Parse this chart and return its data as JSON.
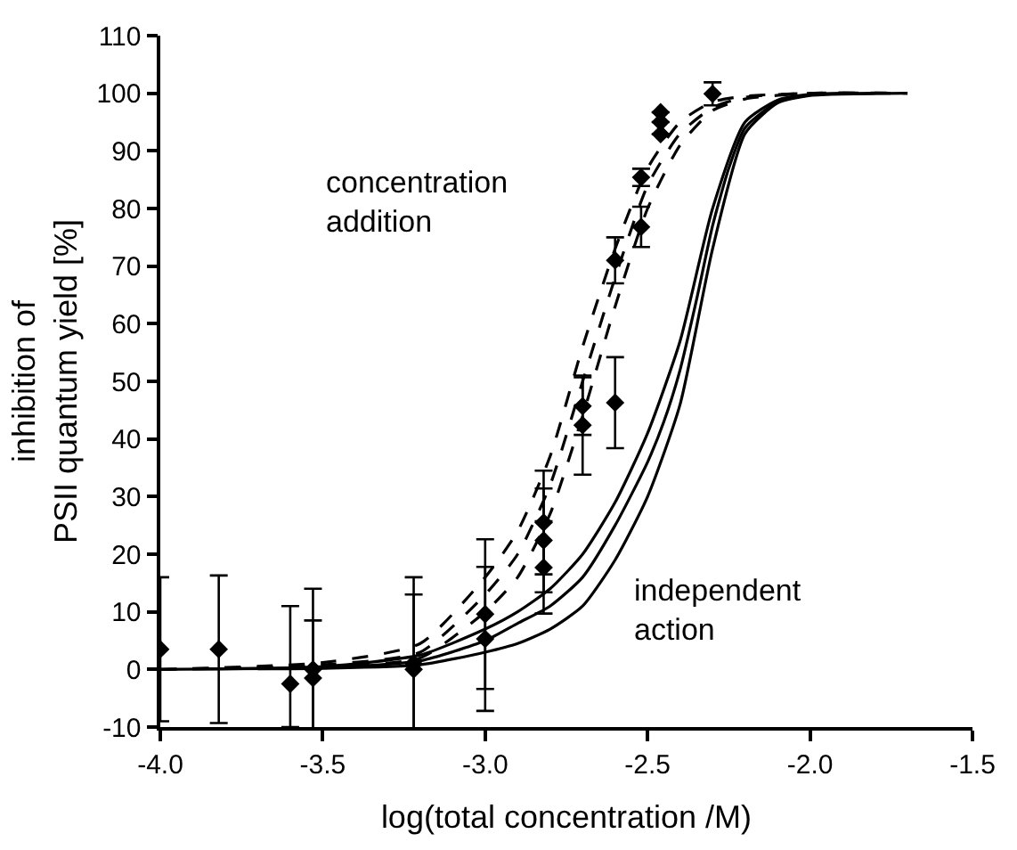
{
  "chart_data": {
    "type": "line",
    "xlabel": "log(total concentration /M)",
    "ylabel": "inhibition of\nPSII quantum yield [%]",
    "xlim": [
      -4.0,
      -1.5
    ],
    "xticks": [
      {
        "value": -4.0,
        "label": "-4.0"
      },
      {
        "value": -3.5,
        "label": "-3.5"
      },
      {
        "value": -3.0,
        "label": "-3.0"
      },
      {
        "value": -2.5,
        "label": "-2.5"
      },
      {
        "value": -2.0,
        "label": "-2.0"
      },
      {
        "value": -1.5,
        "label": "-1.5"
      }
    ],
    "ylim": [
      -10,
      110
    ],
    "yticks": [
      -10,
      0,
      10,
      20,
      30,
      40,
      50,
      60,
      70,
      80,
      90,
      100,
      110
    ],
    "annotations": [
      "concentration\naddition",
      "independent\naction"
    ],
    "series": [
      {
        "line_style": "dashed",
        "marker": "none",
        "color": "#000000",
        "x": [
          -4.0,
          -3.5,
          -3.2,
          -3.0,
          -2.9,
          -2.8,
          -2.7,
          -2.6,
          -2.5,
          -2.4,
          -2.3,
          -2.2,
          -2.0,
          -1.7
        ],
        "values": [
          0,
          0.8,
          3,
          13,
          20,
          32,
          50,
          68,
          84,
          93,
          97.5,
          99.3,
          100,
          100
        ]
      },
      {
        "line_style": "dashed",
        "marker": "none",
        "color": "#000000",
        "x": [
          -4.0,
          -3.5,
          -3.2,
          -3.0,
          -2.9,
          -2.8,
          -2.7,
          -2.6,
          -2.5,
          -2.4,
          -2.3,
          -2.2,
          -2.0
        ],
        "values": [
          0,
          1.2,
          4.5,
          16,
          24,
          37,
          56,
          73,
          87,
          95,
          98.5,
          99.5,
          100
        ]
      },
      {
        "line_style": "dashed",
        "marker": "none",
        "color": "#000000",
        "x": [
          -3.8,
          -3.5,
          -3.2,
          -3.0,
          -2.9,
          -2.8,
          -2.7,
          -2.6,
          -2.5,
          -2.4,
          -2.3,
          -2.2,
          -2.0,
          -1.7
        ],
        "values": [
          0.2,
          0.5,
          2,
          10,
          16,
          27,
          44,
          63,
          80,
          91,
          97,
          99,
          100,
          100
        ]
      },
      {
        "line_style": "solid",
        "marker": "none",
        "color": "#000000",
        "x": [
          -3.9,
          -3.5,
          -3.2,
          -3.0,
          -2.9,
          -2.8,
          -2.7,
          -2.6,
          -2.5,
          -2.45,
          -2.4,
          -2.35,
          -2.3,
          -2.25,
          -2.2,
          -2.1,
          -2.0,
          -1.8
        ],
        "values": [
          0.1,
          0.3,
          1.5,
          5,
          8,
          11,
          16,
          25,
          36,
          43,
          52,
          64,
          77,
          87,
          94,
          98.5,
          99.7,
          100
        ]
      },
      {
        "line_style": "solid",
        "marker": "none",
        "color": "#000000",
        "x": [
          -4.0,
          -3.5,
          -3.2,
          -3.0,
          -2.9,
          -2.8,
          -2.7,
          -2.6,
          -2.5,
          -2.4,
          -2.3,
          -2.2,
          -2.1,
          -2.0,
          -1.9
        ],
        "values": [
          0,
          0.5,
          2.5,
          7,
          10,
          14,
          20,
          29,
          41,
          57,
          80,
          95,
          98.8,
          99.8,
          100
        ]
      },
      {
        "line_style": "solid",
        "marker": "none",
        "color": "#000000",
        "x": [
          -3.7,
          -3.5,
          -3.2,
          -3.0,
          -2.9,
          -2.8,
          -2.7,
          -2.6,
          -2.5,
          -2.4,
          -2.3,
          -2.2,
          -2.1,
          -2.0,
          -1.7
        ],
        "values": [
          0.1,
          0.2,
          0.8,
          3,
          4.5,
          7,
          11,
          19,
          30,
          46,
          73,
          93,
          98.3,
          99.6,
          100
        ]
      },
      {
        "type": "scatter",
        "marker": "diamond",
        "color": "#000000",
        "x": [
          -4.0,
          -3.82,
          -3.6,
          -3.53,
          -3.53,
          -3.22,
          -3.22,
          -3.0,
          -3.0,
          -2.82,
          -2.82,
          -2.82,
          -2.7,
          -2.7,
          -2.6,
          -2.6,
          -2.52,
          -2.52,
          -2.46,
          -2.46,
          -2.46,
          -2.3
        ],
        "values": [
          3.5,
          3.5,
          -2.5,
          0,
          -1.5,
          1,
          0,
          9.6,
          5.3,
          25.5,
          22.4,
          17.7,
          45.7,
          42.4,
          46.3,
          71,
          85.4,
          76.8,
          96.7,
          95,
          92.9,
          99.9
        ],
        "errors": [
          12.5,
          12.8,
          [
            -10,
            11
          ],
          14,
          10,
          15,
          13,
          13,
          12.5,
          9,
          9,
          8,
          5,
          8.6,
          7.9,
          4,
          1.5,
          3.5,
          null,
          null,
          null,
          2
        ]
      }
    ]
  }
}
